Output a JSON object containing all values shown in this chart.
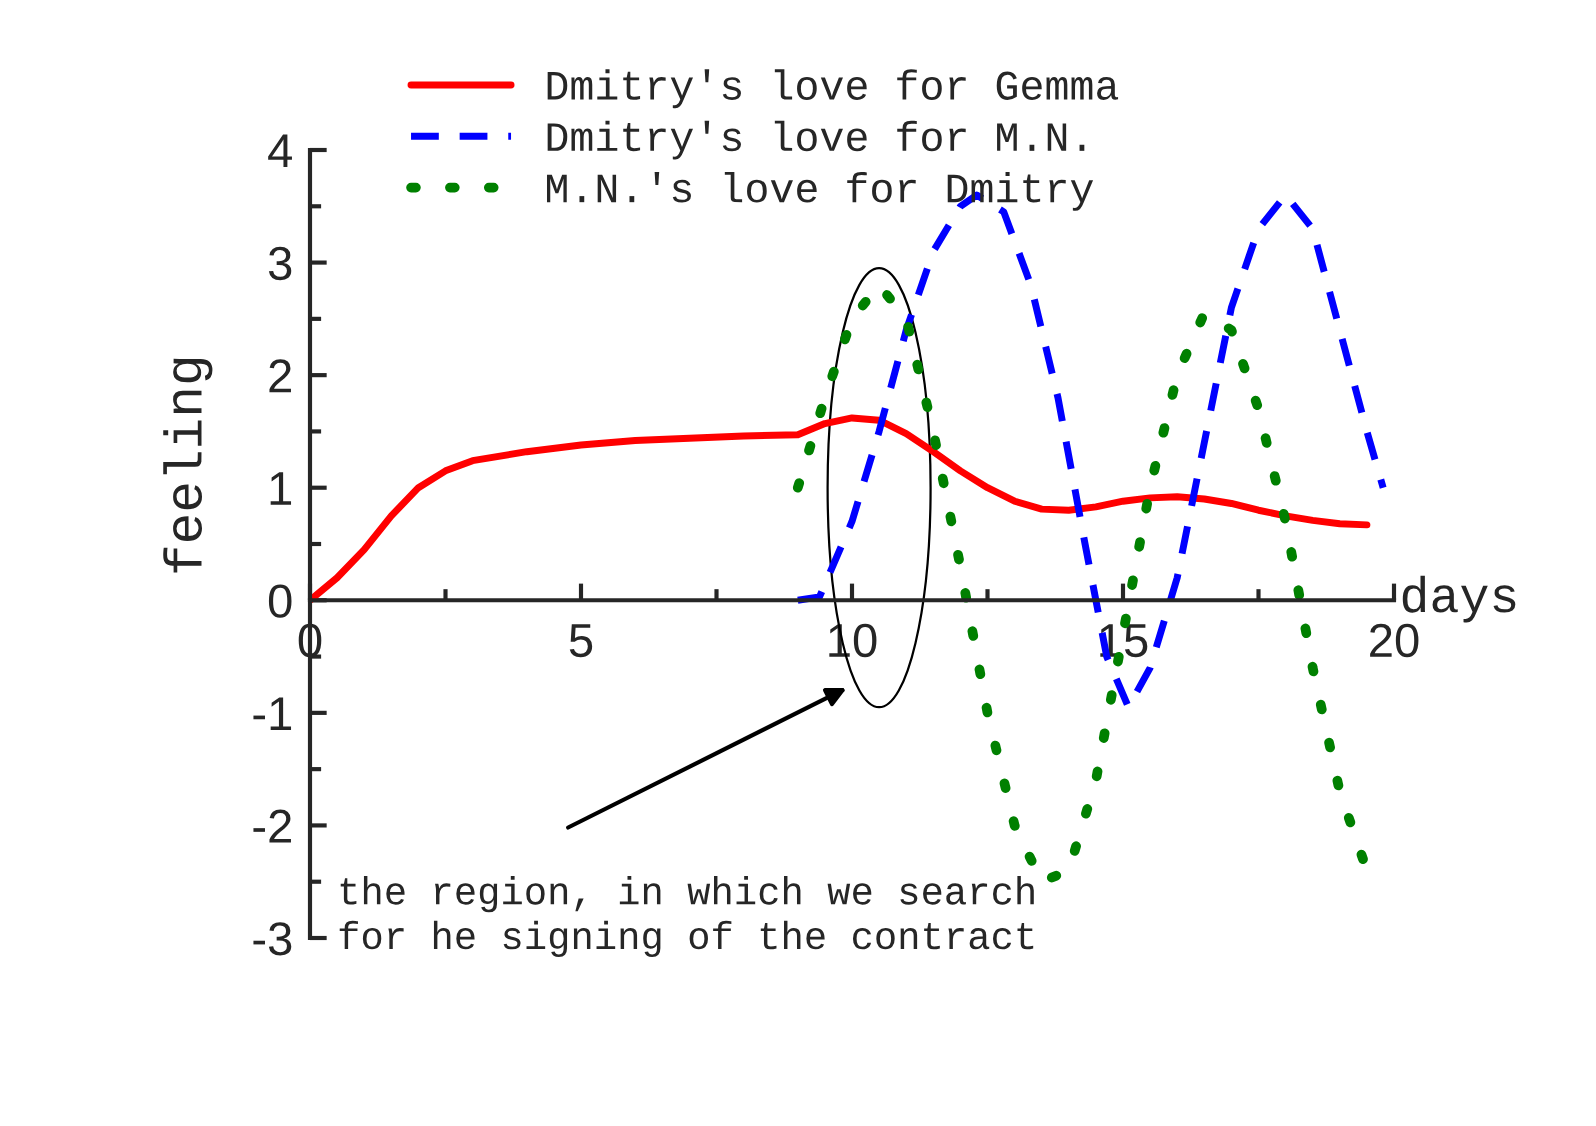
{
  "chart_data": {
    "type": "line",
    "xlabel": "days",
    "ylabel": "feeling",
    "xlim": [
      0,
      20
    ],
    "ylim": [
      -3,
      4
    ],
    "xticks": [
      0,
      5,
      10,
      15,
      20
    ],
    "yticks": [
      -3,
      -2,
      -1,
      0,
      1,
      2,
      3,
      4
    ],
    "legend": "top",
    "grid": false,
    "series": [
      {
        "name": "Dmitry's love for Gemma",
        "color": "#ff0000",
        "line_style": "solid",
        "x": [
          0,
          0.5,
          1,
          1.5,
          2,
          2.5,
          3,
          4,
          5,
          6,
          7,
          8,
          9,
          9.5,
          10,
          10.5,
          11,
          11.5,
          12,
          12.5,
          13,
          13.5,
          14,
          14.5,
          15,
          15.5,
          16,
          16.5,
          17,
          17.5,
          18,
          18.5,
          19,
          19.5
        ],
        "values": [
          0,
          0.2,
          0.45,
          0.75,
          1.0,
          1.15,
          1.24,
          1.32,
          1.38,
          1.42,
          1.44,
          1.46,
          1.47,
          1.57,
          1.62,
          1.6,
          1.48,
          1.32,
          1.15,
          1.0,
          0.88,
          0.81,
          0.8,
          0.83,
          0.88,
          0.91,
          0.92,
          0.9,
          0.86,
          0.8,
          0.75,
          0.71,
          0.68,
          0.67
        ]
      },
      {
        "name": "Dmitry's love for M.N.",
        "color": "#0000ff",
        "line_style": "dashed",
        "x": [
          9,
          9.4,
          10,
          10.5,
          11,
          11.5,
          12,
          12.3,
          12.8,
          13.3,
          13.8,
          14.3,
          14.7,
          15.1,
          15.5,
          16,
          16.5,
          17,
          17.5,
          18,
          18.5,
          19,
          19.5,
          19.8
        ],
        "values": [
          0,
          0.03,
          0.7,
          1.5,
          2.4,
          3.1,
          3.5,
          3.6,
          3.45,
          2.8,
          1.8,
          0.5,
          -0.5,
          -0.95,
          -0.6,
          0.2,
          1.4,
          2.6,
          3.3,
          3.6,
          3.3,
          2.4,
          1.5,
          1.0
        ]
      },
      {
        "name": "M.N.'s love for Dmitry",
        "color": "#008000",
        "line_style": "dotted",
        "x": [
          9,
          9.5,
          10,
          10.5,
          11,
          11.5,
          12,
          12.5,
          13,
          13.5,
          14,
          14.5,
          15,
          15.5,
          16,
          16.5,
          17,
          17.5,
          18,
          18.5,
          19,
          19.5
        ],
        "values": [
          1.0,
          1.8,
          2.5,
          2.8,
          2.5,
          1.5,
          0.3,
          -1.0,
          -2.0,
          -2.5,
          -2.4,
          -1.6,
          -0.3,
          1.0,
          2.0,
          2.55,
          2.4,
          1.7,
          0.7,
          -0.6,
          -1.7,
          -2.4
        ]
      }
    ],
    "annotations": [
      "the region, in which we search\nfor he signing of the contract"
    ]
  }
}
